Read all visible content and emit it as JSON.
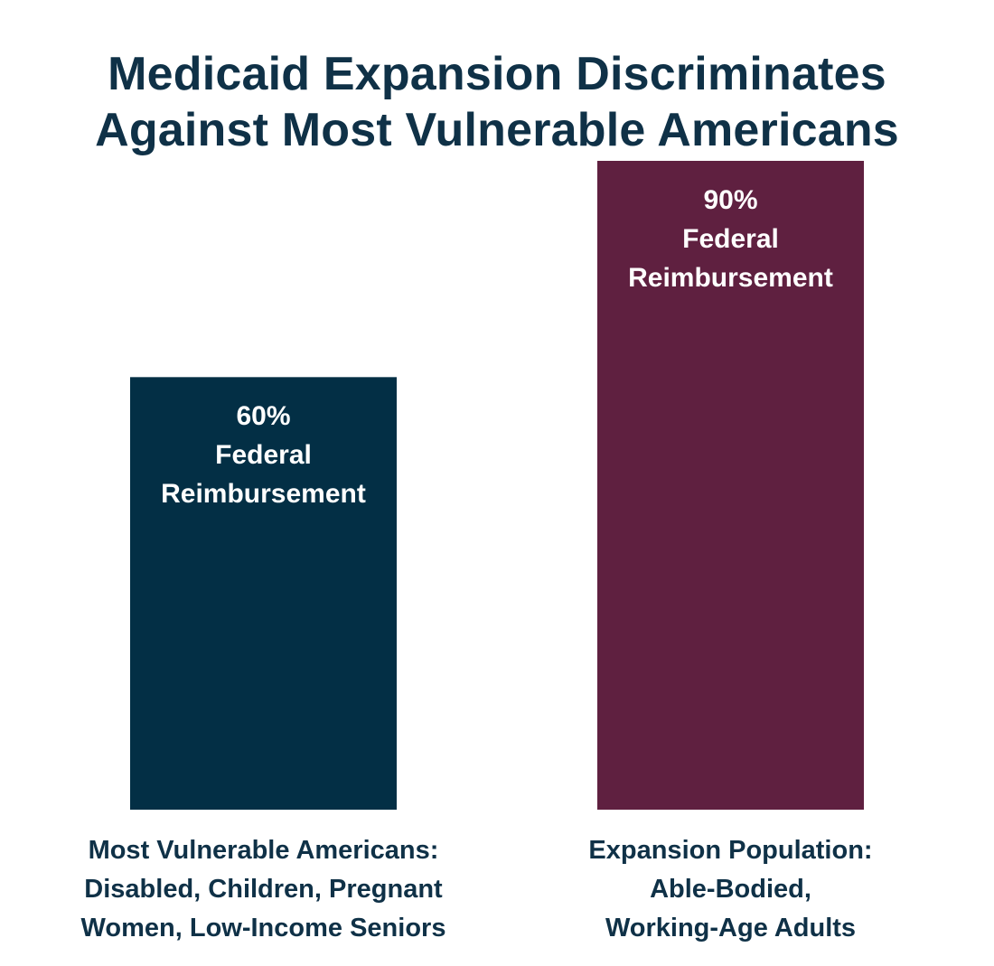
{
  "colors": {
    "title": "#0f3147",
    "category_text": "#0f3147",
    "bar_label_text": "#ffffff",
    "background": "#ffffff"
  },
  "chart_data": {
    "type": "bar",
    "title_lines": [
      "Medicaid Expansion Discriminates",
      "Against Most Vulnerable Americans"
    ],
    "categories": [
      {
        "lines": [
          "Most Vulnerable Americans:",
          "Disabled, Children, Pregnant",
          "Women, Low-Income Seniors"
        ]
      },
      {
        "lines": [
          "Expansion Population:",
          "Able-Bodied,",
          "Working-Age Adults"
        ]
      }
    ],
    "values": [
      60,
      90
    ],
    "unit": "%",
    "bar_colors": [
      "#032f45",
      "#5f2040"
    ],
    "data_labels": [
      [
        "60%",
        "Federal",
        "Reimbursement"
      ],
      [
        "90%",
        "Federal",
        "Reimbursement"
      ]
    ],
    "ylim": [
      0,
      90
    ],
    "grid": false,
    "legend": "none"
  }
}
